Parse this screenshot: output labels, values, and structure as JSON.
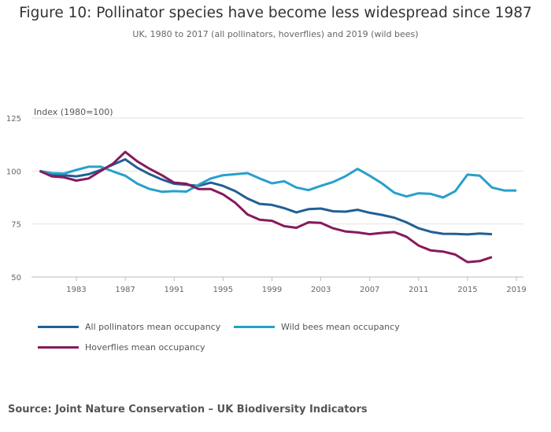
{
  "chart_data": {
    "type": "line",
    "title": "Figure 10: Pollinator species have become less widespread since 1987",
    "subtitle": "UK, 1980 to 2017 (all pollinators, hoverflies) and 2019 (wild bees)",
    "ylabel": "Index (1980=100)",
    "xlabel": "",
    "xlim": [
      1980,
      2019
    ],
    "ylim": [
      50,
      125
    ],
    "y_ticks": [
      50,
      75,
      100,
      125
    ],
    "x_ticks": [
      1983,
      1987,
      1991,
      1995,
      1999,
      2003,
      2007,
      2011,
      2015,
      2019
    ],
    "grid": "horizontal",
    "legend_position": "bottom",
    "series": [
      {
        "name": "All pollinators mean occupancy",
        "color": "#206095",
        "x_start": 1980,
        "values": [
          100,
          98.5,
          98,
          97.5,
          98.5,
          100.5,
          103,
          105.5,
          101.5,
          98.5,
          96,
          94,
          93.5,
          93,
          94.5,
          93,
          90.5,
          87,
          84.5,
          84,
          82.5,
          80.5,
          82,
          82.3,
          81,
          80.8,
          81.7,
          80.3,
          79.3,
          78,
          75.8,
          73,
          71.3,
          70.4,
          70.3,
          70.1,
          70.5,
          70.2
        ]
      },
      {
        "name": "Wild bees mean occupancy",
        "color": "#27a0cc",
        "x_start": 1980,
        "values": [
          100,
          99,
          98.8,
          100.5,
          102,
          102,
          99.8,
          97.8,
          94,
          91.5,
          90.2,
          90.5,
          90.3,
          93.5,
          96.5,
          98,
          98.5,
          99,
          96.5,
          94.2,
          95.2,
          92.2,
          91,
          93,
          94.8,
          97.5,
          101,
          97.8,
          94.2,
          89.8,
          88,
          89.5,
          89.2,
          87.5,
          90.5,
          98.3,
          97.8,
          92.2,
          90.8,
          90.8
        ]
      },
      {
        "name": "Hoverflies mean occupancy",
        "color": "#871a5b",
        "x_start": 1980,
        "values": [
          100,
          97.5,
          97,
          95.5,
          96.5,
          100,
          103.5,
          109,
          104.5,
          101,
          98,
          94.5,
          94,
          91.5,
          91.5,
          89,
          85,
          79.5,
          77,
          76.5,
          74,
          73.2,
          75.8,
          75.5,
          73,
          71.5,
          71,
          70.2,
          70.8,
          71.2,
          69,
          64.8,
          62.5,
          62,
          60.6,
          57,
          57.5,
          59.4
        ]
      }
    ]
  },
  "source": "Source: Joint Nature Conservation – UK Biodiversity Indicators"
}
